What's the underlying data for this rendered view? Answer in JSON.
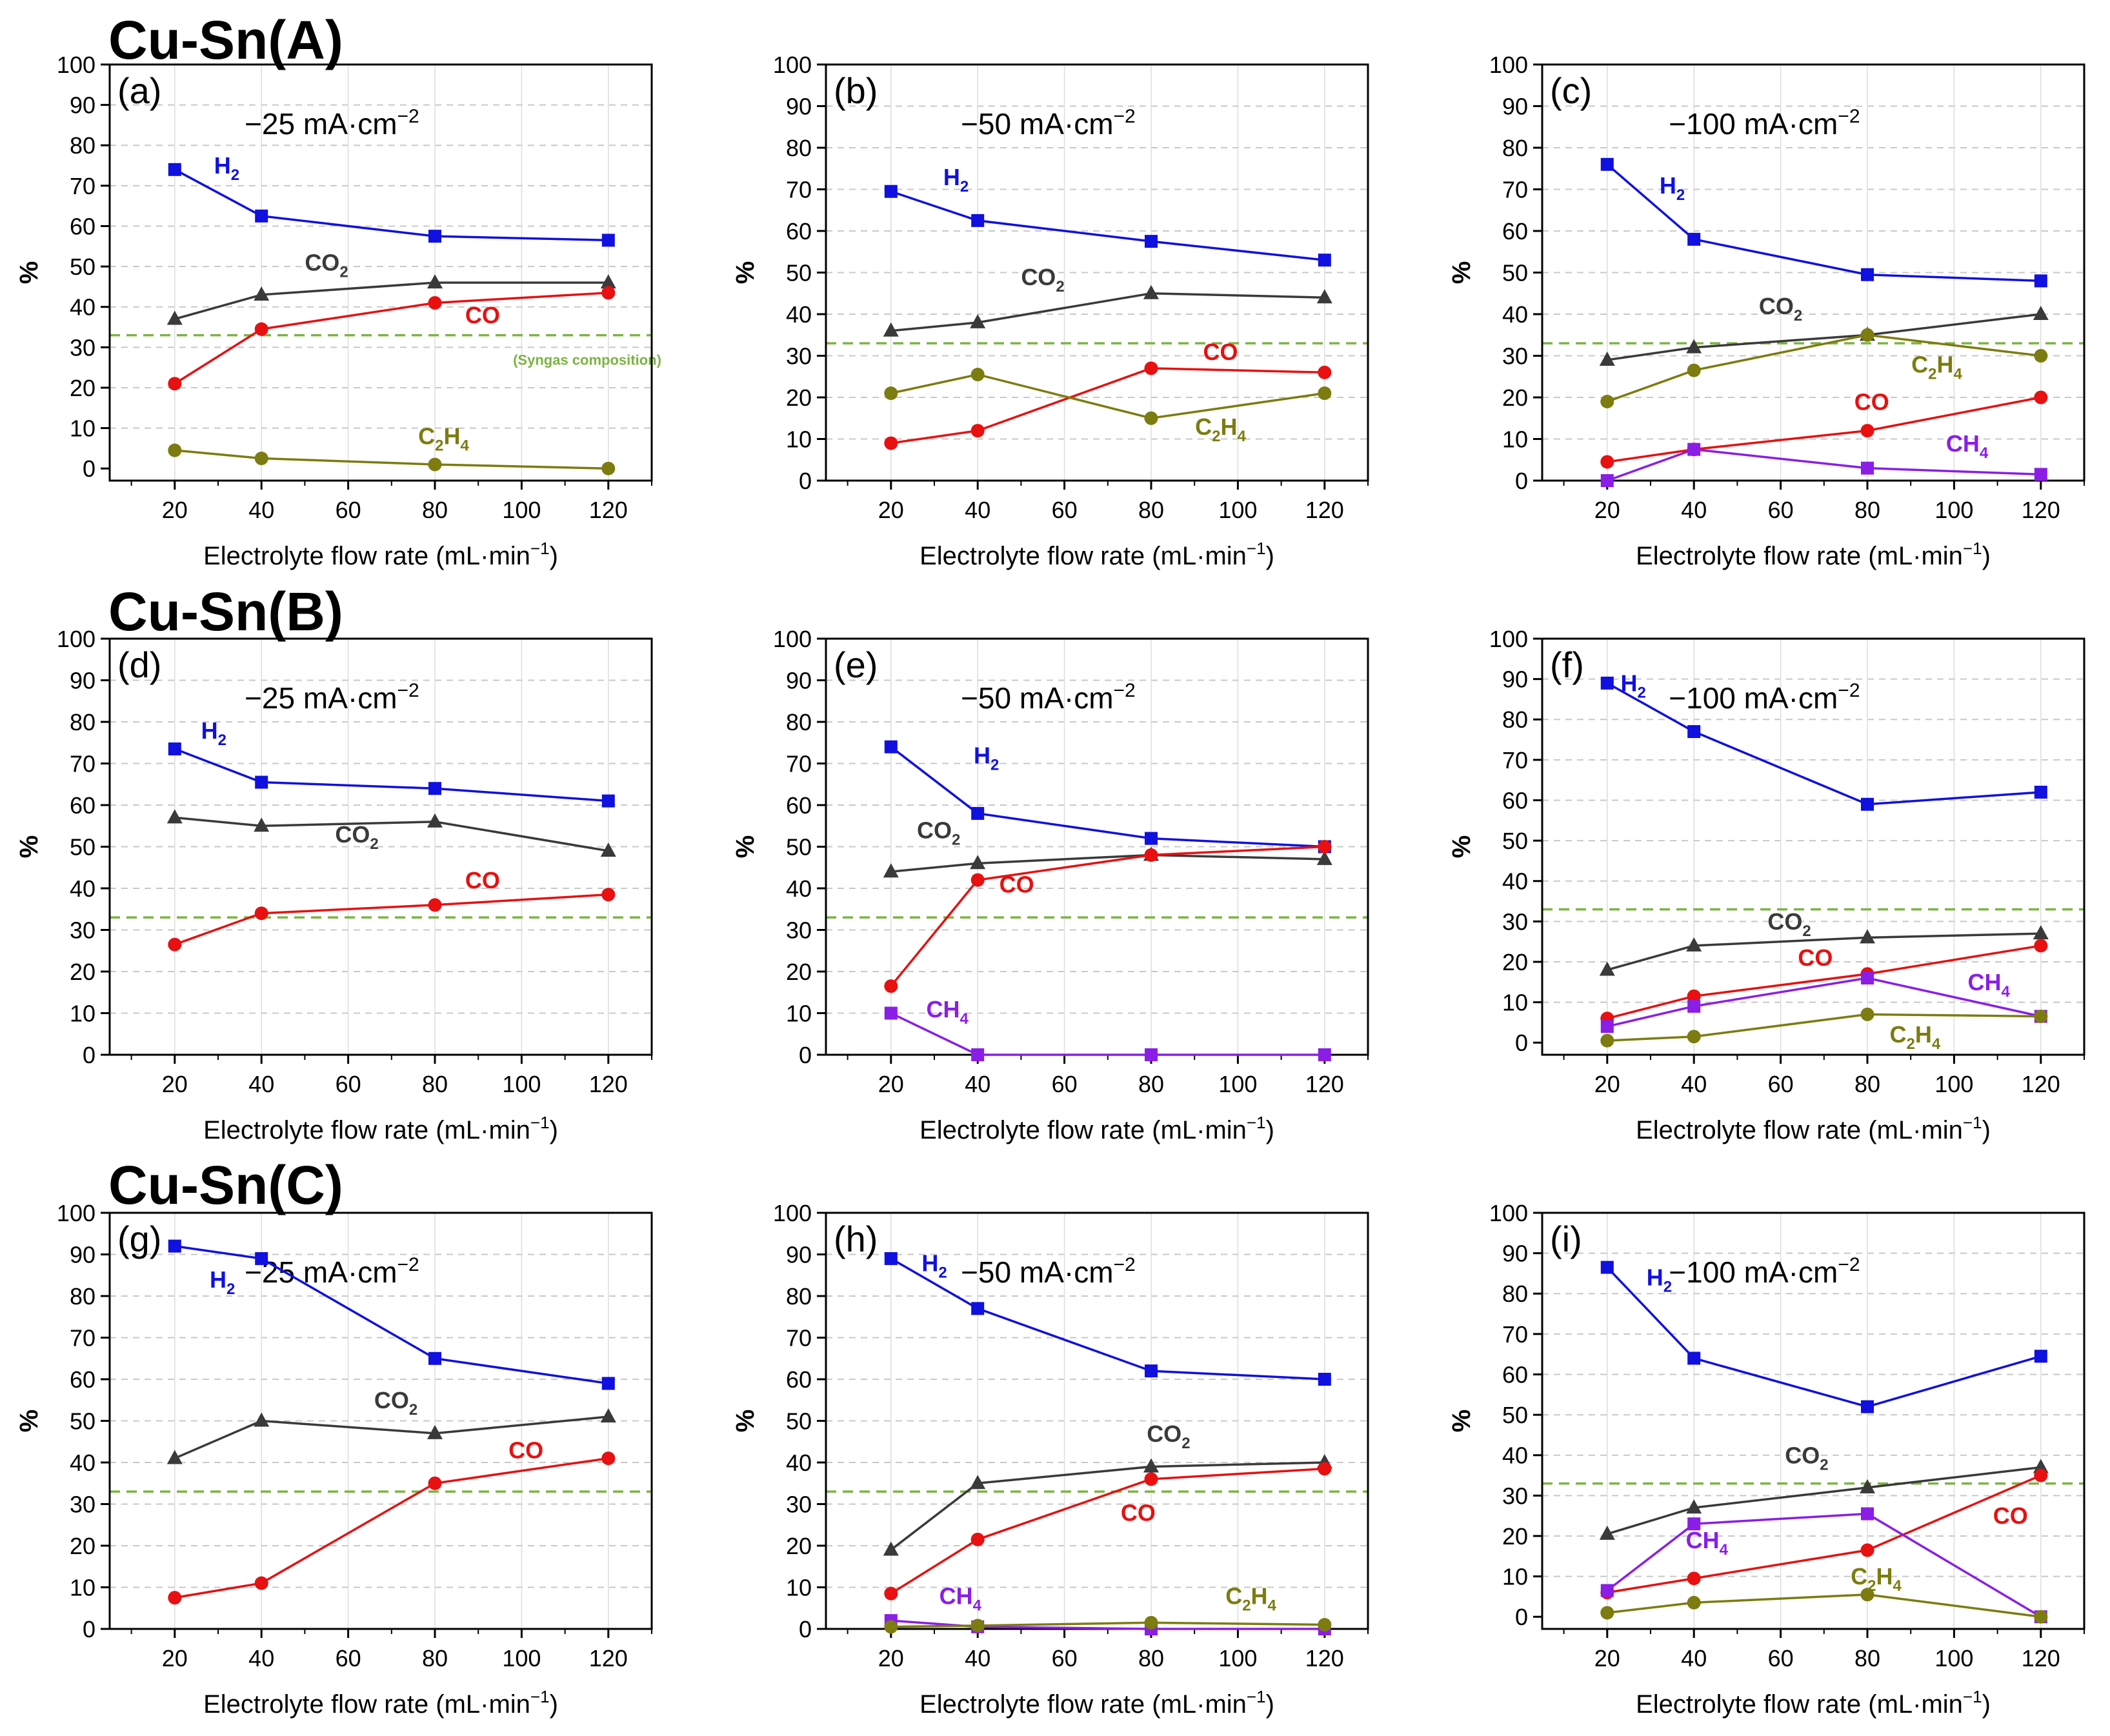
{
  "figure": {
    "rows": [
      {
        "title": "Cu-Sn(A)"
      },
      {
        "title": "Cu-Sn(B)"
      },
      {
        "title": "Cu-Sn(C)"
      }
    ],
    "syngas_label": "(Syngas composition)",
    "colors": {
      "H2": "#1010e0",
      "CO2": "#3a3a3a",
      "CO": "#e81010",
      "C2H4": "#7c7c10",
      "CH4": "#8a1ee6",
      "syngas": "#7cb342"
    }
  },
  "chart_data": [
    {
      "type": "line",
      "panel_label": "(a)",
      "condition": "−25 mA·cm",
      "condition_sup": "−2",
      "x": [
        20,
        40,
        80,
        120
      ],
      "xlim": [
        5,
        130
      ],
      "ylim": [
        -3,
        100
      ],
      "xticks": [
        "20",
        "40",
        "60",
        "80",
        "100",
        "120"
      ],
      "yticks": [
        "0",
        "10",
        "20",
        "30",
        "40",
        "50",
        "60",
        "70",
        "80",
        "90",
        "100"
      ],
      "xlabel": "Electrolyte flow rate (mL·min",
      "xlabel_sup": "−1",
      "xlabel_end": ")",
      "ylabel": "%",
      "syngas_line": 33,
      "series": [
        {
          "name": "H2",
          "label": "H",
          "sub": "2",
          "marker": "square",
          "values": [
            74,
            62.5,
            57.5,
            56.5
          ],
          "label_at": [
            32,
            73
          ]
        },
        {
          "name": "CO2",
          "label": "CO",
          "sub": "2",
          "marker": "triangle",
          "values": [
            37,
            43,
            46,
            46
          ],
          "label_at": [
            55,
            49
          ]
        },
        {
          "name": "CO",
          "label": "CO",
          "sub": "",
          "marker": "circle",
          "values": [
            21,
            34.5,
            41,
            43.5
          ],
          "label_at": [
            91,
            36
          ]
        },
        {
          "name": "C2H4",
          "label": "C",
          "sub": "2",
          "label2": "H",
          "sub2": "4",
          "marker": "circle",
          "values": [
            4.5,
            2.5,
            1,
            0
          ],
          "label_at": [
            82,
            6
          ]
        }
      ]
    },
    {
      "type": "line",
      "panel_label": "(b)",
      "condition": "−50 mA·cm",
      "condition_sup": "−2",
      "x": [
        20,
        40,
        80,
        120
      ],
      "xlim": [
        5,
        130
      ],
      "ylim": [
        0,
        100
      ],
      "xticks": [
        "20",
        "40",
        "60",
        "80",
        "100",
        "120"
      ],
      "yticks": [
        "0",
        "10",
        "20",
        "30",
        "40",
        "50",
        "60",
        "70",
        "80",
        "90",
        "100"
      ],
      "xlabel": "Electrolyte flow rate (mL·min",
      "xlabel_sup": "−1",
      "xlabel_end": ")",
      "ylabel": "%",
      "syngas_line": 33,
      "series": [
        {
          "name": "H2",
          "label": "H",
          "sub": "2",
          "marker": "square",
          "values": [
            69.5,
            62.5,
            57.5,
            53
          ],
          "label_at": [
            35,
            71
          ]
        },
        {
          "name": "CO2",
          "label": "CO",
          "sub": "2",
          "marker": "triangle",
          "values": [
            36,
            38,
            45,
            44
          ],
          "label_at": [
            55,
            47
          ]
        },
        {
          "name": "CO",
          "label": "CO",
          "sub": "",
          "marker": "circle",
          "values": [
            9,
            12,
            27,
            26
          ],
          "label_at": [
            96,
            29
          ]
        },
        {
          "name": "C2H4",
          "label": "C",
          "sub": "2",
          "label2": "H",
          "sub2": "4",
          "marker": "circle",
          "values": [
            21,
            25.5,
            15,
            21
          ],
          "label_at": [
            96,
            11
          ]
        }
      ]
    },
    {
      "type": "line",
      "panel_label": "(c)",
      "condition": "−100 mA·cm",
      "condition_sup": "−2",
      "x": [
        20,
        40,
        80,
        120
      ],
      "xlim": [
        5,
        130
      ],
      "ylim": [
        0,
        100
      ],
      "xticks": [
        "20",
        "40",
        "60",
        "80",
        "100",
        "120"
      ],
      "yticks": [
        "0",
        "10",
        "20",
        "30",
        "40",
        "50",
        "60",
        "70",
        "80",
        "90",
        "100"
      ],
      "xlabel": "Electrolyte flow rate (mL·min",
      "xlabel_sup": "−1",
      "xlabel_end": ")",
      "ylabel": "%",
      "syngas_line": 33,
      "series": [
        {
          "name": "H2",
          "label": "H",
          "sub": "2",
          "marker": "square",
          "values": [
            76,
            58,
            49.5,
            48
          ],
          "label_at": [
            35,
            69
          ]
        },
        {
          "name": "CO2",
          "label": "CO",
          "sub": "2",
          "marker": "triangle",
          "values": [
            29,
            32,
            35,
            40
          ],
          "label_at": [
            60,
            40
          ]
        },
        {
          "name": "CO",
          "label": "CO",
          "sub": "",
          "marker": "circle",
          "values": [
            4.5,
            7.5,
            12,
            20
          ],
          "label_at": [
            81,
            17
          ]
        },
        {
          "name": "C2H4",
          "label": "C",
          "sub": "2",
          "label2": "H",
          "sub2": "4",
          "marker": "circle",
          "values": [
            19,
            26.5,
            35,
            30
          ],
          "label_at": [
            96,
            26
          ]
        },
        {
          "name": "CH4",
          "label": "CH",
          "sub": "4",
          "marker": "square",
          "values": [
            0,
            7.5,
            3,
            1.5
          ],
          "label_at": [
            103,
            7
          ]
        }
      ]
    },
    {
      "type": "line",
      "panel_label": "(d)",
      "condition": "−25 mA·cm",
      "condition_sup": "−2",
      "x": [
        20,
        40,
        80,
        120
      ],
      "xlim": [
        5,
        130
      ],
      "ylim": [
        0,
        100
      ],
      "xticks": [
        "20",
        "40",
        "60",
        "80",
        "100",
        "120"
      ],
      "yticks": [
        "0",
        "10",
        "20",
        "30",
        "40",
        "50",
        "60",
        "70",
        "80",
        "90",
        "100"
      ],
      "xlabel": "Electrolyte flow rate (mL·min",
      "xlabel_sup": "−1",
      "xlabel_end": ")",
      "ylabel": "%",
      "syngas_line": 33,
      "series": [
        {
          "name": "H2",
          "label": "H",
          "sub": "2",
          "marker": "square",
          "values": [
            73.5,
            65.5,
            64,
            61
          ],
          "label_at": [
            29,
            76
          ]
        },
        {
          "name": "CO2",
          "label": "CO",
          "sub": "2",
          "marker": "triangle",
          "values": [
            57,
            55,
            56,
            49
          ],
          "label_at": [
            62,
            51
          ]
        },
        {
          "name": "CO",
          "label": "CO",
          "sub": "",
          "marker": "circle",
          "values": [
            26.5,
            34,
            36,
            38.5
          ],
          "label_at": [
            91,
            40
          ]
        }
      ]
    },
    {
      "type": "line",
      "panel_label": "(e)",
      "condition": "−50 mA·cm",
      "condition_sup": "−2",
      "x": [
        20,
        40,
        80,
        120
      ],
      "xlim": [
        5,
        130
      ],
      "ylim": [
        0,
        100
      ],
      "xticks": [
        "20",
        "40",
        "60",
        "80",
        "100",
        "120"
      ],
      "yticks": [
        "0",
        "10",
        "20",
        "30",
        "40",
        "50",
        "60",
        "70",
        "80",
        "90",
        "100"
      ],
      "xlabel": "Electrolyte flow rate (mL·min",
      "xlabel_sup": "−1",
      "xlabel_end": ")",
      "ylabel": "%",
      "syngas_line": 33,
      "series": [
        {
          "name": "H2",
          "label": "H",
          "sub": "2",
          "marker": "square",
          "values": [
            74,
            58,
            52,
            50
          ],
          "label_at": [
            42,
            70
          ]
        },
        {
          "name": "CO2",
          "label": "CO",
          "sub": "2",
          "marker": "triangle",
          "values": [
            44,
            46,
            48,
            47
          ],
          "label_at": [
            31,
            52
          ]
        },
        {
          "name": "CO",
          "label": "CO",
          "sub": "",
          "marker": "circle",
          "values": [
            16.5,
            42,
            48,
            50
          ],
          "label_at": [
            49,
            39
          ]
        },
        {
          "name": "CH4",
          "label": "CH",
          "sub": "4",
          "marker": "square",
          "values": [
            10,
            0,
            0,
            0
          ],
          "label_at": [
            33,
            9
          ]
        }
      ]
    },
    {
      "type": "line",
      "panel_label": "(f)",
      "condition": "−100 mA·cm",
      "condition_sup": "−2",
      "x": [
        20,
        40,
        80,
        120
      ],
      "xlim": [
        5,
        130
      ],
      "ylim": [
        -3,
        100
      ],
      "xticks": [
        "20",
        "40",
        "60",
        "80",
        "100",
        "120"
      ],
      "yticks": [
        "0",
        "10",
        "20",
        "30",
        "40",
        "50",
        "60",
        "70",
        "80",
        "90",
        "100"
      ],
      "xlabel": "Electrolyte flow rate (mL·min",
      "xlabel_sup": "−1",
      "xlabel_end": ")",
      "ylabel": "%",
      "syngas_line": 33,
      "series": [
        {
          "name": "H2",
          "label": "H",
          "sub": "2",
          "marker": "square",
          "values": [
            89,
            77,
            59,
            62
          ],
          "label_at": [
            26,
            87
          ]
        },
        {
          "name": "CO2",
          "label": "CO",
          "sub": "2",
          "marker": "triangle",
          "values": [
            18,
            24,
            26,
            27
          ],
          "label_at": [
            62,
            28
          ]
        },
        {
          "name": "CO",
          "label": "CO",
          "sub": "",
          "marker": "circle",
          "values": [
            6,
            11.5,
            17,
            24
          ],
          "label_at": [
            68,
            19
          ]
        },
        {
          "name": "CH4",
          "label": "CH",
          "sub": "4",
          "marker": "square",
          "values": [
            4,
            9,
            16,
            6.5
          ],
          "label_at": [
            108,
            13
          ]
        },
        {
          "name": "C2H4",
          "label": "C",
          "sub": "2",
          "label2": "H",
          "sub2": "4",
          "marker": "circle",
          "values": [
            0.5,
            1.5,
            7,
            6.5
          ],
          "label_at": [
            91,
            0
          ]
        }
      ]
    },
    {
      "type": "line",
      "panel_label": "(g)",
      "condition": "−25 mA·cm",
      "condition_sup": "−2",
      "x": [
        20,
        40,
        80,
        120
      ],
      "xlim": [
        5,
        130
      ],
      "ylim": [
        0,
        100
      ],
      "xticks": [
        "20",
        "40",
        "60",
        "80",
        "100",
        "120"
      ],
      "yticks": [
        "0",
        "10",
        "20",
        "30",
        "40",
        "50",
        "60",
        "70",
        "80",
        "90",
        "100"
      ],
      "xlabel": "Electrolyte flow rate (mL·min",
      "xlabel_sup": "−1",
      "xlabel_end": ")",
      "ylabel": "%",
      "syngas_line": 33,
      "series": [
        {
          "name": "H2",
          "label": "H",
          "sub": "2",
          "marker": "square",
          "values": [
            92,
            89,
            65,
            59
          ],
          "label_at": [
            31,
            82
          ]
        },
        {
          "name": "CO2",
          "label": "CO",
          "sub": "2",
          "marker": "triangle",
          "values": [
            41,
            50,
            47,
            51
          ],
          "label_at": [
            71,
            53
          ]
        },
        {
          "name": "CO",
          "label": "CO",
          "sub": "",
          "marker": "circle",
          "values": [
            7.5,
            11,
            35,
            41
          ],
          "label_at": [
            101,
            41
          ]
        }
      ]
    },
    {
      "type": "line",
      "panel_label": "(h)",
      "condition": "−50 mA·cm",
      "condition_sup": "−2",
      "x": [
        20,
        40,
        80,
        120
      ],
      "xlim": [
        5,
        130
      ],
      "ylim": [
        0,
        100
      ],
      "xticks": [
        "20",
        "40",
        "60",
        "80",
        "100",
        "120"
      ],
      "yticks": [
        "0",
        "10",
        "20",
        "30",
        "40",
        "50",
        "60",
        "70",
        "80",
        "90",
        "100"
      ],
      "xlabel": "Electrolyte flow rate (mL·min",
      "xlabel_sup": "−1",
      "xlabel_end": ")",
      "ylabel": "%",
      "syngas_line": 33,
      "series": [
        {
          "name": "H2",
          "label": "H",
          "sub": "2",
          "marker": "square",
          "values": [
            89,
            77,
            62,
            60
          ],
          "label_at": [
            30,
            86
          ]
        },
        {
          "name": "CO2",
          "label": "CO",
          "sub": "2",
          "marker": "triangle",
          "values": [
            19,
            35,
            39,
            40
          ],
          "label_at": [
            84,
            45
          ]
        },
        {
          "name": "CO",
          "label": "CO",
          "sub": "",
          "marker": "circle",
          "values": [
            8.5,
            21.5,
            36,
            38.5
          ],
          "label_at": [
            77,
            26
          ]
        },
        {
          "name": "CH4",
          "label": "CH",
          "sub": "4",
          "marker": "square",
          "values": [
            2,
            0.5,
            0,
            0
          ],
          "label_at": [
            36,
            6
          ]
        },
        {
          "name": "C2H4",
          "label": "C",
          "sub": "2",
          "label2": "H",
          "sub2": "4",
          "marker": "circle",
          "values": [
            0.5,
            0.8,
            1.5,
            1
          ],
          "label_at": [
            103,
            6
          ]
        }
      ]
    },
    {
      "type": "line",
      "panel_label": "(i)",
      "condition": "−100 mA·cm",
      "condition_sup": "−2",
      "x": [
        20,
        40,
        80,
        120
      ],
      "xlim": [
        5,
        130
      ],
      "ylim": [
        -3,
        100
      ],
      "xticks": [
        "20",
        "40",
        "60",
        "80",
        "100",
        "120"
      ],
      "yticks": [
        "0",
        "10",
        "20",
        "30",
        "40",
        "50",
        "60",
        "70",
        "80",
        "90",
        "100"
      ],
      "xlabel": "Electrolyte flow rate (mL·min",
      "xlabel_sup": "−1",
      "xlabel_end": ")",
      "ylabel": "%",
      "syngas_line": 33,
      "series": [
        {
          "name": "H2",
          "label": "H",
          "sub": "2",
          "marker": "square",
          "values": [
            86.5,
            64,
            52,
            64.5
          ],
          "label_at": [
            32,
            82
          ]
        },
        {
          "name": "CO2",
          "label": "CO",
          "sub": "2",
          "marker": "triangle",
          "values": [
            20.5,
            27,
            32,
            37
          ],
          "label_at": [
            66,
            38
          ]
        },
        {
          "name": "CO",
          "label": "CO",
          "sub": "",
          "marker": "circle",
          "values": [
            6,
            9.5,
            16.5,
            35
          ],
          "label_at": [
            113,
            23
          ]
        },
        {
          "name": "CH4",
          "label": "CH",
          "sub": "4",
          "marker": "square",
          "values": [
            6.5,
            23,
            25.5,
            0
          ],
          "label_at": [
            43,
            17
          ]
        },
        {
          "name": "C2H4",
          "label": "C",
          "sub": "2",
          "label2": "H",
          "sub2": "4",
          "marker": "circle",
          "values": [
            1,
            3.5,
            5.5,
            0
          ],
          "label_at": [
            82,
            8
          ]
        }
      ]
    }
  ]
}
